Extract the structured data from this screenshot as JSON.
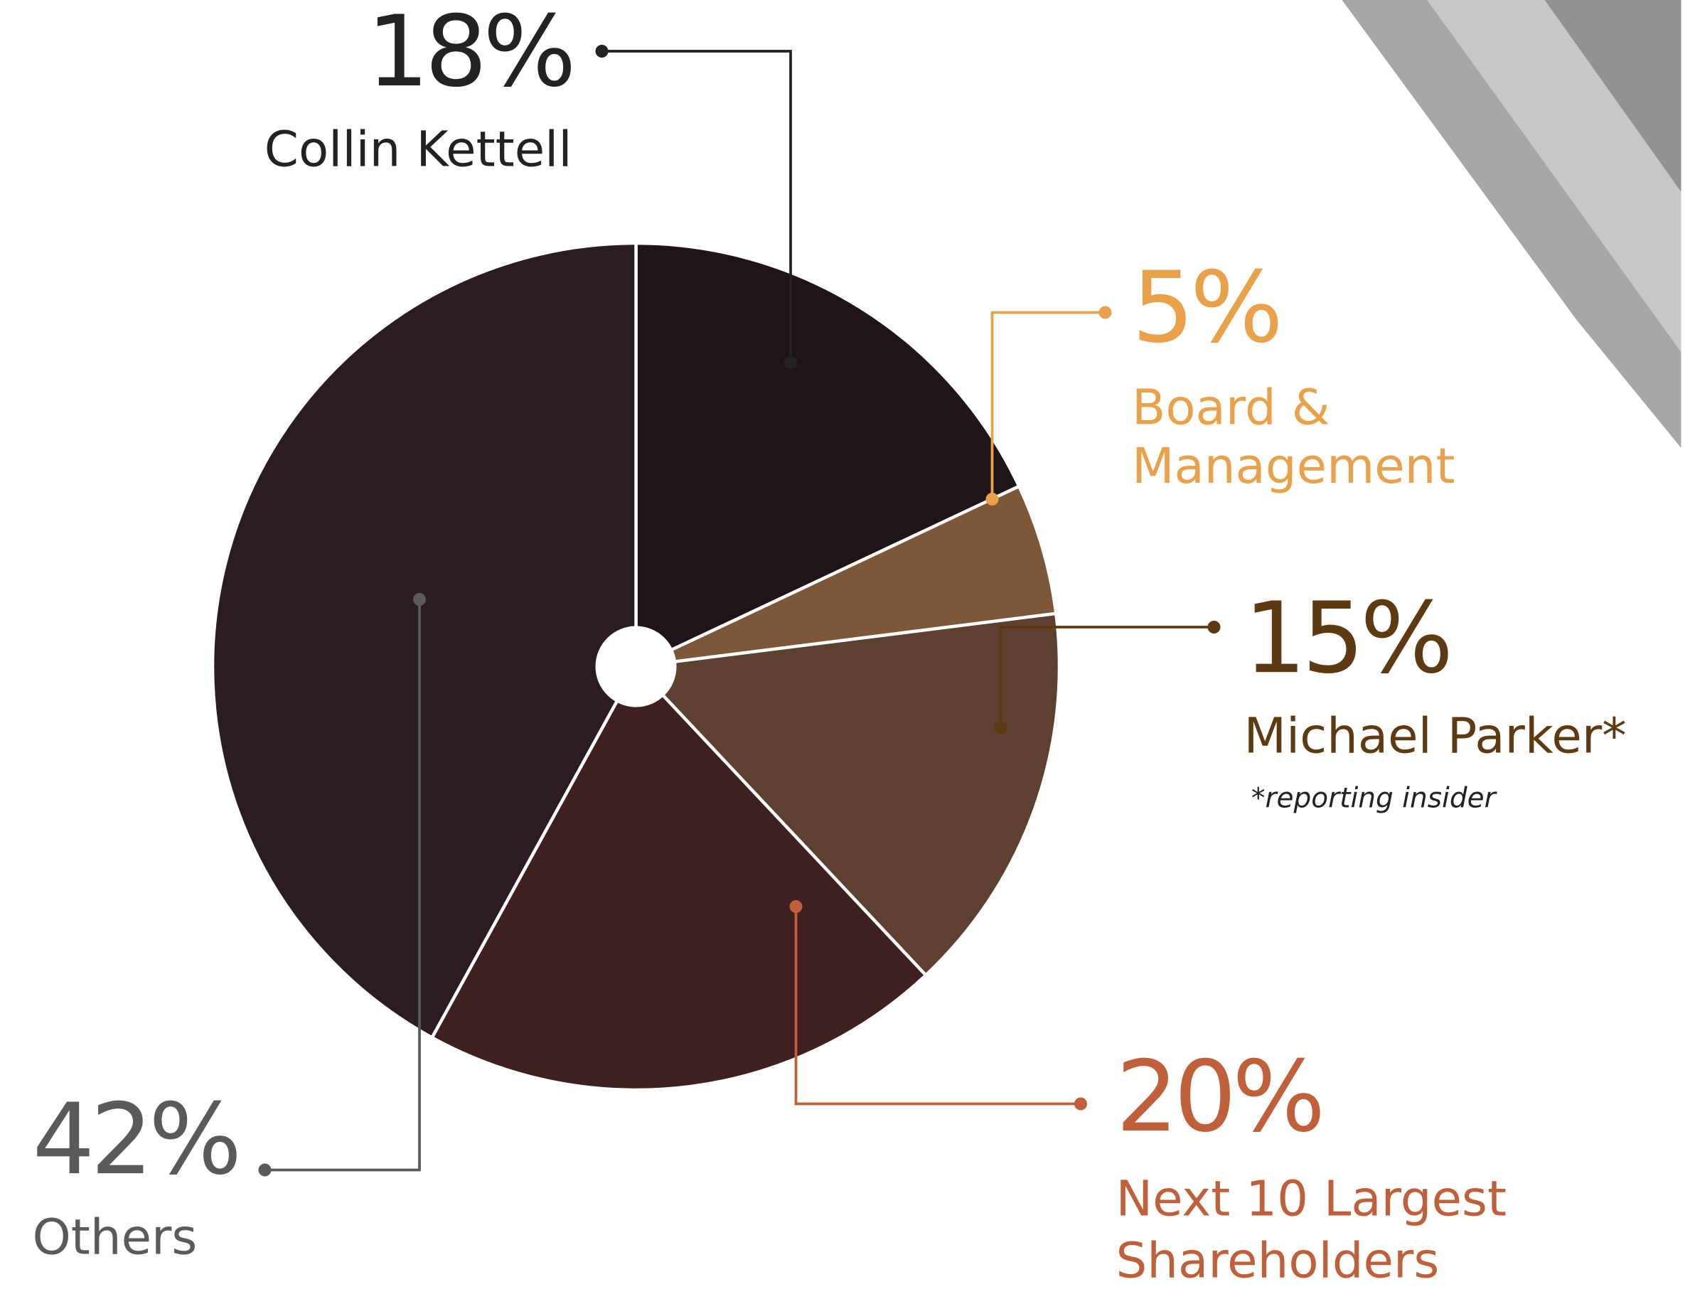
{
  "chart_data": {
    "type": "pie",
    "categories": [
      "Collin Kettell",
      "Board & Management",
      "Michael Parker*",
      "Next 10 Largest Shareholders",
      "Others"
    ],
    "values": [
      18,
      5,
      15,
      20,
      42
    ],
    "value_labels": [
      "18%",
      "5%",
      "15%",
      "20%",
      "42%"
    ],
    "colors": [
      "#1f1519",
      "#7e5738",
      "#5e4030",
      "#3e2020",
      "#2a1c22"
    ],
    "label_colors": [
      "#222222",
      "#e9a24a",
      "#5e3a12",
      "#c0603a",
      "#5a5a5a"
    ],
    "annotation": "*reporting insider"
  }
}
